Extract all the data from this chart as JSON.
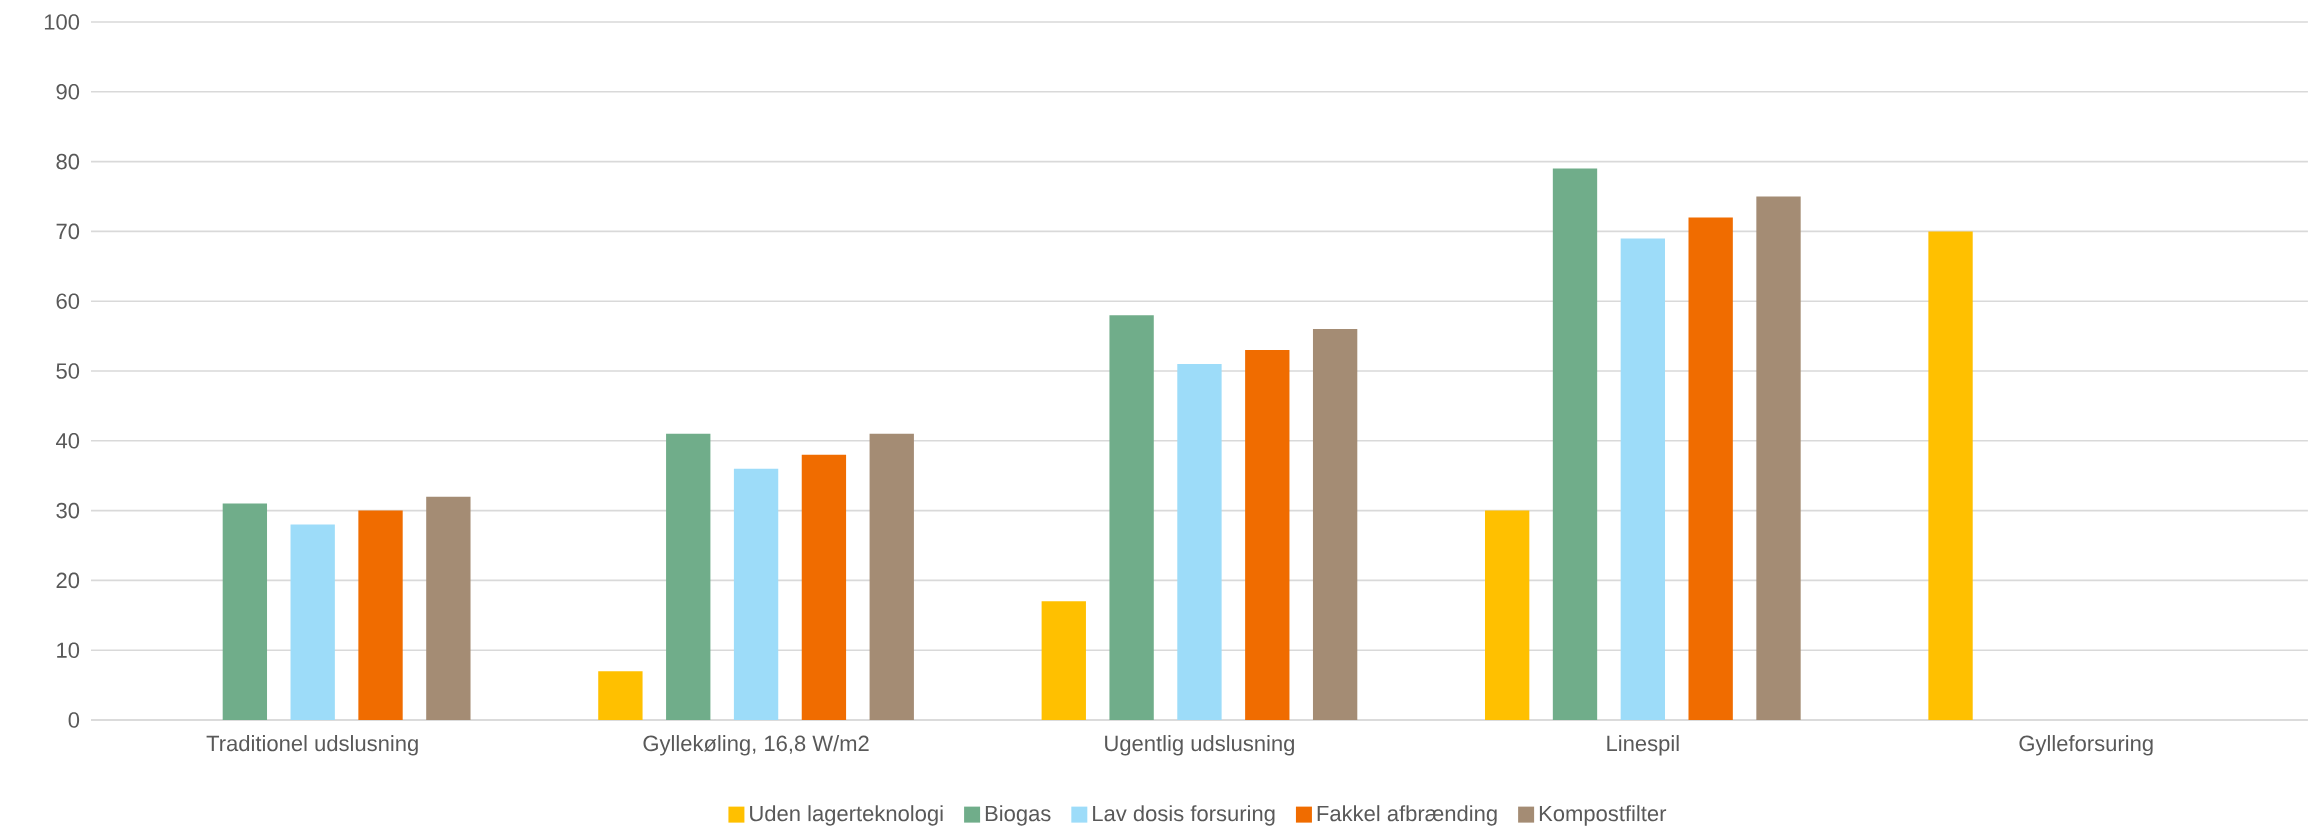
{
  "chart_data": {
    "type": "bar",
    "categories": [
      "Traditionel udslusning",
      "Gyllekøling, 16,8 W/m2",
      "Ugentlig udslusning",
      "Linespil",
      "Gylleforsuring"
    ],
    "series": [
      {
        "name": "Uden lagerteknologi",
        "color": "#ffc000",
        "values": [
          null,
          7,
          17,
          30,
          70
        ]
      },
      {
        "name": "Biogas",
        "color": "#70ad8a",
        "values": [
          31,
          41,
          58,
          79,
          null
        ]
      },
      {
        "name": "Lav dosis forsuring",
        "color": "#9ddcf9",
        "values": [
          28,
          36,
          51,
          69,
          null
        ]
      },
      {
        "name": "Fakkel afbrænding",
        "color": "#f06c00",
        "values": [
          30,
          38,
          53,
          72,
          null
        ]
      },
      {
        "name": "Kompostfilter",
        "color": "#a48c74",
        "values": [
          32,
          41,
          56,
          75,
          null
        ]
      }
    ],
    "ylim": [
      0,
      100
    ],
    "yticks": [
      0,
      10,
      20,
      30,
      40,
      50,
      60,
      70,
      80,
      90,
      100
    ],
    "grid": "y",
    "legend": "bottom"
  }
}
